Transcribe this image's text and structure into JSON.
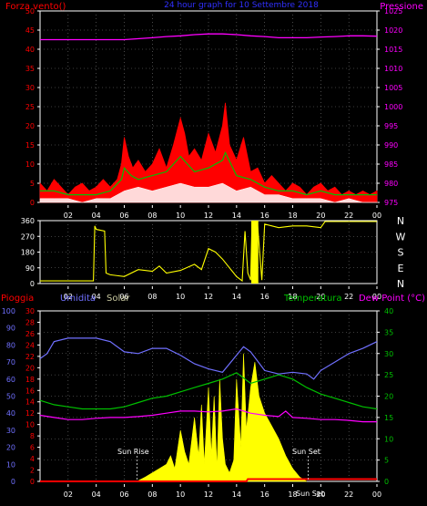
{
  "colors": {
    "background": "#000000",
    "frame": "#ffffff",
    "grid": "#7a7a7a",
    "wind_gust": "#ff0000",
    "wind_avg": "#00c000",
    "wind_min": "#ffffff",
    "pressure": "#ff00ff",
    "wind_dir": "#ffff00",
    "rain": "#ff0000",
    "humidity": "#7070ff",
    "solar": "#ffff00",
    "temperature": "#00c000",
    "dewpoint": "#ff00ff",
    "tick_labels": "#ffffff"
  },
  "x_ticks": [
    "02",
    "04",
    "06",
    "08",
    "10",
    "12",
    "14",
    "16",
    "18",
    "20",
    "22",
    "00"
  ],
  "chart_data": [
    {
      "type": "line",
      "title": "24 hour graph for 10 Settembre 2018",
      "left_label": "Forza vento()",
      "right_label": "Pressione",
      "x_range_hours": [
        0,
        24
      ],
      "left_ylim": [
        0,
        50
      ],
      "left_ticks": [
        "0",
        "5",
        "10",
        "15",
        "20",
        "25",
        "30",
        "35",
        "40",
        "45",
        "50"
      ],
      "right_ylim": [
        975,
        1025
      ],
      "right_ticks": [
        "975",
        "980",
        "985",
        "990",
        "995",
        "1000",
        "1005",
        "1010",
        "1015",
        "1020",
        "1025"
      ],
      "grid": true,
      "series": [
        {
          "name": "",
          "kind": "wind_gust",
          "x": [
            0,
            0.5,
            1,
            1.5,
            2,
            2.5,
            3,
            3.5,
            4,
            4.5,
            5,
            5.5,
            5.8,
            6,
            6.3,
            6.6,
            7,
            7.5,
            8,
            8.5,
            9,
            9.5,
            10,
            10.3,
            10.6,
            11,
            11.5,
            12,
            12.5,
            13,
            13.2,
            13.5,
            14,
            14.5,
            15,
            15.5,
            16,
            16.5,
            17,
            17.5,
            18,
            18.5,
            19,
            19.5,
            20,
            20.5,
            21,
            21.5,
            22,
            22.5,
            23,
            23.5,
            24
          ],
          "values": [
            5,
            3,
            6,
            4,
            2,
            4,
            5,
            3,
            4,
            6,
            4,
            6,
            10,
            17,
            12,
            9,
            11,
            8,
            10,
            14,
            9,
            15,
            22,
            18,
            12,
            14,
            11,
            18,
            13,
            20,
            26,
            15,
            11,
            17,
            8,
            9,
            5,
            7,
            5,
            3,
            5,
            4,
            2,
            4,
            5,
            3,
            4,
            2,
            3,
            2,
            3,
            2,
            3
          ]
        },
        {
          "name": "",
          "kind": "wind_avg",
          "x": [
            0,
            1,
            2,
            3,
            4,
            5,
            5.8,
            6,
            6.5,
            7,
            8,
            9,
            10,
            10.5,
            11,
            12,
            13,
            13.2,
            14,
            15,
            16,
            17,
            18,
            19,
            20,
            21,
            22,
            23,
            24
          ],
          "values": [
            3,
            3,
            2,
            2,
            2,
            3,
            6,
            9,
            7,
            6,
            7,
            8,
            12,
            10,
            8,
            9,
            11,
            13,
            7,
            6,
            4,
            3,
            3,
            2,
            3,
            2,
            2,
            2,
            2
          ]
        },
        {
          "name": "",
          "kind": "wind_min",
          "x": [
            0,
            1,
            2,
            3,
            4,
            5,
            6,
            7,
            8,
            9,
            10,
            11,
            12,
            13,
            14,
            15,
            16,
            17,
            18,
            19,
            20,
            21,
            22,
            23,
            24
          ],
          "values": [
            1,
            1,
            1,
            0,
            1,
            1,
            3,
            4,
            3,
            4,
            5,
            4,
            4,
            5,
            3,
            4,
            2,
            2,
            1,
            1,
            1,
            0,
            1,
            0,
            0
          ]
        },
        {
          "name": "",
          "kind": "pressure",
          "x": [
            0,
            2,
            4,
            6,
            8,
            9,
            10,
            11,
            12,
            13,
            14,
            15,
            16,
            17,
            18,
            19,
            20,
            21,
            22,
            23,
            24
          ],
          "values": [
            1017.5,
            1017.5,
            1017.5,
            1017.5,
            1018,
            1018.3,
            1018.5,
            1018.8,
            1019,
            1019,
            1018.8,
            1018.5,
            1018.3,
            1018,
            1018,
            1018,
            1018.2,
            1018.3,
            1018.5,
            1018.5,
            1018.4
          ]
        }
      ]
    },
    {
      "type": "line",
      "title": "",
      "ylim": [
        0,
        360
      ],
      "left_ticks": [
        "0",
        "90",
        "180",
        "270",
        "360"
      ],
      "right_ticks": [
        "N",
        "W",
        "S",
        "E",
        "N"
      ],
      "grid": true,
      "series": [
        {
          "name": "",
          "kind": "wind_dir",
          "x": [
            0,
            2,
            3.8,
            3.9,
            4,
            4.6,
            4.7,
            5,
            6,
            7,
            8,
            8.5,
            9,
            10,
            11,
            11.5,
            12,
            12.5,
            13,
            13.5,
            14,
            14.4,
            14.6,
            14.8,
            15,
            15.1,
            15.3,
            15.5,
            15.8,
            16,
            17,
            18,
            19,
            20,
            20.3,
            21,
            22,
            23,
            24
          ],
          "values": [
            15,
            15,
            15,
            330,
            310,
            300,
            60,
            50,
            40,
            80,
            70,
            100,
            60,
            75,
            110,
            80,
            200,
            180,
            140,
            90,
            40,
            15,
            300,
            60,
            20,
            350,
            10,
            330,
            20,
            340,
            320,
            330,
            330,
            320,
            355,
            355,
            355,
            355,
            355
          ]
        }
      ]
    },
    {
      "type": "line",
      "labels": {
        "rain": "Pioggia",
        "humidity": "Umidita",
        "solar": "Solar",
        "temperature": "Temperatura",
        "dewpoint": "Dew Point (°C)"
      },
      "annotations": [
        "Sun Rise",
        "Sun Set",
        "Sun Set"
      ],
      "rain_ylim": [
        0,
        30
      ],
      "rain_ticks": [
        "0",
        "2",
        "4",
        "6",
        "8",
        "10",
        "12",
        "14",
        "16",
        "18",
        "20",
        "22",
        "24",
        "26",
        "28",
        "30"
      ],
      "humidity_ylim": [
        0,
        100
      ],
      "humidity_ticks": [
        "0",
        "10",
        "20",
        "30",
        "40",
        "50",
        "60",
        "70",
        "80",
        "90",
        "100"
      ],
      "temp_ylim": [
        0,
        40
      ],
      "temp_ticks": [
        "0",
        "5",
        "10",
        "15",
        "20",
        "25",
        "30",
        "35",
        "40"
      ],
      "grid": true,
      "series": [
        {
          "name": "Umidita",
          "kind": "humidity",
          "x": [
            0,
            0.5,
            1,
            2,
            3,
            4,
            5,
            6,
            7,
            8,
            9,
            10,
            11,
            12,
            13,
            14,
            14.5,
            15,
            16,
            17,
            18,
            19,
            19.5,
            20,
            21,
            22,
            23,
            24
          ],
          "values": [
            72,
            75,
            82,
            84,
            84,
            84,
            82,
            76,
            75,
            78,
            78,
            74,
            69,
            66,
            64,
            74,
            79,
            76,
            65,
            63,
            64,
            63,
            60,
            65,
            70,
            75,
            78,
            82
          ]
        },
        {
          "name": "Temperatura",
          "kind": "temperature",
          "x": [
            0,
            1,
            2,
            3,
            4,
            5,
            6,
            7,
            8,
            9,
            10,
            11,
            12,
            13,
            14,
            15,
            16,
            17,
            18,
            19,
            20,
            21,
            22,
            23,
            24
          ],
          "values": [
            19,
            18,
            17.5,
            17,
            17,
            17,
            17.5,
            18.5,
            19.5,
            20,
            21,
            22,
            23,
            24,
            25.5,
            23,
            24,
            25,
            24,
            22,
            20.5,
            19.5,
            18.5,
            17.5,
            17
          ]
        },
        {
          "name": "Dew Point (°C)",
          "kind": "dewpoint",
          "x": [
            0,
            1,
            2,
            3,
            4,
            5,
            6,
            7,
            8,
            9,
            10,
            11,
            12,
            13,
            14,
            15,
            16,
            17,
            17.5,
            18,
            19,
            20,
            21,
            22,
            23,
            24
          ],
          "values": [
            15.5,
            15,
            14.5,
            14.5,
            14.8,
            15,
            15,
            15.2,
            15.5,
            16,
            16.5,
            16.5,
            16.3,
            16.5,
            17,
            16,
            15.5,
            15.2,
            16.5,
            15,
            14.8,
            14.5,
            14.5,
            14.3,
            14,
            14
          ]
        },
        {
          "name": "Solar",
          "kind": "solar",
          "x": [
            6.9,
            7.5,
            8,
            8.5,
            9,
            9.3,
            9.6,
            10,
            10.3,
            10.6,
            11,
            11.3,
            11.5,
            11.7,
            12,
            12.2,
            12.4,
            12.6,
            12.8,
            13,
            13.2,
            13.5,
            13.8,
            14,
            14.3,
            14.5,
            14.7,
            15,
            15.3,
            15.6,
            16,
            16.5,
            17,
            17.5,
            18,
            18.5,
            19
          ],
          "values": [
            0,
            1,
            2,
            3,
            4,
            6,
            3,
            12,
            7,
            4,
            15,
            6,
            18,
            4,
            22,
            6,
            20,
            3,
            24,
            10,
            4,
            2,
            5,
            24,
            8,
            30,
            12,
            22,
            28,
            20,
            16,
            13,
            10,
            6,
            3,
            1,
            0
          ]
        },
        {
          "name": "Pioggia",
          "kind": "rain",
          "x": [
            0,
            14.7,
            14.8,
            24
          ],
          "values": [
            0,
            0,
            0.4,
            0.4
          ]
        }
      ]
    }
  ]
}
